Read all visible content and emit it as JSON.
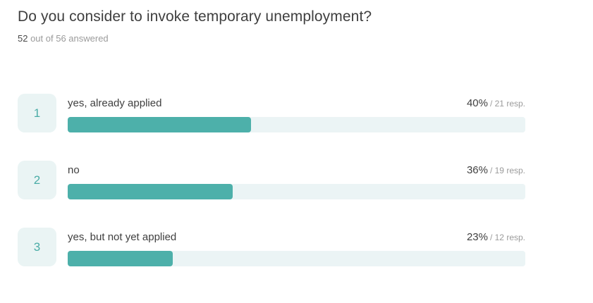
{
  "page": {
    "title": "Do you consider to invoke temporary unemployment?",
    "answered_count": "52",
    "answered_rest": " out of 56 answered"
  },
  "colors": {
    "bar_fill": "#4db0aa",
    "bar_track": "#ebf4f5",
    "badge_background": "#eaf4f4",
    "badge_text": "#4aaca6",
    "text_dark": "#3f3f3f",
    "text_gray": "#9b9b9b"
  },
  "results": [
    {
      "rank": "1",
      "label": "yes, already applied",
      "percent": "40%",
      "resp": "/ 21 resp.",
      "percent_value": 40
    },
    {
      "rank": "2",
      "label": "no",
      "percent": "36%",
      "resp": "/ 19 resp.",
      "percent_value": 36
    },
    {
      "rank": "3",
      "label": "yes, but not yet applied",
      "percent": "23%",
      "resp": "/ 12 resp.",
      "percent_value": 23
    }
  ],
  "chart_data": {
    "type": "bar",
    "orientation": "horizontal",
    "title": "Do you consider to invoke temporary unemployment?",
    "subtitle": "52 out of 56 answered",
    "categories": [
      "yes, already applied",
      "no",
      "yes, but not yet applied"
    ],
    "values": [
      40,
      36,
      23
    ],
    "responses": [
      21,
      19,
      12
    ],
    "answered": 52,
    "total_respondents": 56,
    "unit": "%",
    "xlim": [
      0,
      100
    ],
    "grid": false,
    "legend": false
  }
}
